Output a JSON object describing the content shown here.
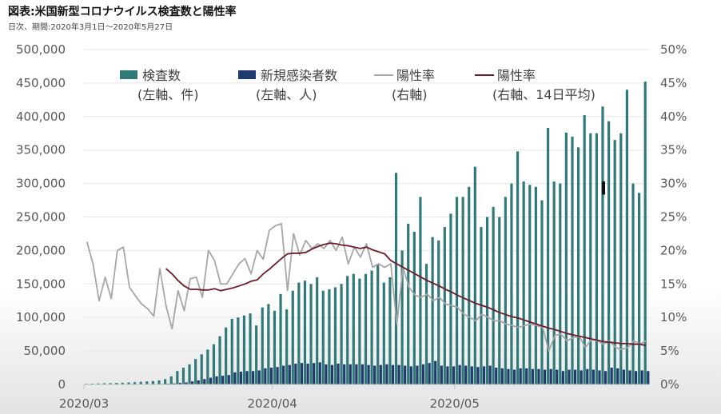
{
  "title": "図表:米国新型コロナウイルス検査数と陽性率",
  "subtitle": "日次、期間:2020年3月1日〜2020年5月27日",
  "colors": {
    "tests": "#2f7a79",
    "cases": "#1f3a6e",
    "positivity": "#a6a6a6",
    "positivity_avg": "#6b1c2a",
    "tick": "#595959"
  },
  "legend": [
    {
      "label": "検査数",
      "sub": "(左軸、件)",
      "swatch": "box",
      "color": "#2f7a79"
    },
    {
      "label": "新規感染者数",
      "sub": "(左軸、人)",
      "swatch": "box",
      "color": "#1f3a6e"
    },
    {
      "label": "陽性率",
      "sub": "(右軸)",
      "swatch": "line",
      "color": "#a6a6a6"
    },
    {
      "label": "陽性率",
      "sub": "(右軸、14日平均)",
      "swatch": "line",
      "color": "#6b1c2a"
    }
  ],
  "chart_data": {
    "type": "bar",
    "x_tick_labels": [
      "2020/03",
      "2020/04",
      "2020/05"
    ],
    "y_left": {
      "ylim": [
        0,
        500000
      ],
      "ticks": [
        "0",
        "50,000",
        "100,000",
        "150,000",
        "200,000",
        "250,000",
        "300,000",
        "350,000",
        "400,000",
        "450,000",
        "500,000"
      ]
    },
    "y_right": {
      "ylim": [
        0,
        50
      ],
      "ticks": [
        "0%",
        "5%",
        "10%",
        "15%",
        "20%",
        "25%",
        "30%",
        "35%",
        "40%",
        "45%",
        "50%"
      ]
    },
    "x_start": "2020-03-01",
    "x_end": "2020-05-27",
    "series": [
      {
        "name": "検査数",
        "axis": "left",
        "kind": "bar",
        "values": [
          1000,
          1200,
          1500,
          1800,
          2000,
          2300,
          2600,
          3000,
          3500,
          4000,
          4500,
          5000,
          6000,
          8000,
          12000,
          20000,
          25000,
          30000,
          38000,
          45000,
          52000,
          60000,
          72000,
          85000,
          98000,
          100000,
          103000,
          106000,
          88000,
          115000,
          120000,
          110000,
          135000,
          112000,
          140000,
          152000,
          155000,
          150000,
          160000,
          140000,
          142000,
          145000,
          150000,
          162000,
          165000,
          158000,
          165000,
          170000,
          180000,
          152000,
          160000,
          316000,
          200000,
          240000,
          228000,
          280000,
          180000,
          220000,
          215000,
          235000,
          255000,
          280000,
          280000,
          295000,
          325000,
          235000,
          250000,
          265000,
          250000,
          280000,
          300000,
          348000,
          303000,
          298000,
          295000,
          275000,
          383000,
          303000,
          300000,
          376000,
          370000,
          354000,
          402000,
          375000,
          375000,
          415000,
          393000,
          365000,
          375000,
          440000,
          300000,
          286000,
          452000
        ]
      },
      {
        "name": "新規感染者数",
        "axis": "left",
        "kind": "bar",
        "values": [
          10,
          15,
          20,
          25,
          30,
          50,
          80,
          100,
          200,
          300,
          400,
          500,
          700,
          1000,
          1500,
          2300,
          3000,
          4500,
          6000,
          8000,
          10000,
          12000,
          13000,
          14000,
          18000,
          19000,
          20000,
          20000,
          21000,
          24000,
          25000,
          26000,
          28000,
          29000,
          31000,
          32000,
          31000,
          32000,
          33000,
          30000,
          29000,
          31000,
          30000,
          30000,
          30000,
          30000,
          29000,
          28000,
          29000,
          30000,
          29000,
          29000,
          28000,
          27000,
          28000,
          30000,
          32000,
          35000,
          28000,
          27000,
          27000,
          29000,
          28000,
          27000,
          26000,
          27000,
          28000,
          25000,
          24000,
          23000,
          22000,
          24000,
          24000,
          23000,
          23000,
          22000,
          23000,
          22000,
          20000,
          22000,
          22000,
          21000,
          23000,
          22000,
          21000,
          20000,
          25000,
          24000,
          22000,
          21000,
          20000,
          21000,
          20000
        ]
      },
      {
        "name": "陽性率",
        "axis": "right",
        "kind": "line",
        "values": [
          21.3,
          18.0,
          12.5,
          16.0,
          12.8,
          20.0,
          20.5,
          14.5,
          13.2,
          12.0,
          11.3,
          10.2,
          17.3,
          11.8,
          8.3,
          14.0,
          11.0,
          15.8,
          16.0,
          13.0,
          20.0,
          18.5,
          15.0,
          15.0,
          16.5,
          18.0,
          18.8,
          16.5,
          20.0,
          18.7,
          23.0,
          23.7,
          24.0,
          14.0,
          22.5,
          19.3,
          21.5,
          20.3,
          21.0,
          20.3,
          21.5,
          20.0,
          22.0,
          18.0,
          20.5,
          19.0,
          21.0,
          17.5,
          18.0,
          17.5,
          18.0,
          9.0,
          17.5,
          14.5,
          13.3,
          13.0,
          13.5,
          12.5,
          13.0,
          12.0,
          11.8,
          11.5,
          10.5,
          10.0,
          9.5,
          10.5,
          10.0,
          9.5,
          9.5,
          9.0,
          8.8,
          8.5,
          8.8,
          9.0,
          8.8,
          8.5,
          5.0,
          7.3,
          7.5,
          6.5,
          7.0,
          7.2,
          5.5,
          6.7,
          6.5,
          6.0,
          6.5,
          5.5,
          5.2,
          5.5,
          6.5,
          6.0,
          6.5
        ]
      },
      {
        "name": "陽性率",
        "axis": "right",
        "kind": "line",
        "start_index": 13,
        "values": [
          17.3,
          16.5,
          15.5,
          14.7,
          14.2,
          14.2,
          14.1,
          14.1,
          14.3,
          14.0,
          14.2,
          14.4,
          14.7,
          15.0,
          15.4,
          15.6,
          16.5,
          17.2,
          18.0,
          18.8,
          19.5,
          19.6,
          19.6,
          19.7,
          20.2,
          20.6,
          20.9,
          21.1,
          21.0,
          20.8,
          20.7,
          20.5,
          20.3,
          20.5,
          20.1,
          19.8,
          19.5,
          18.5,
          18.0,
          17.5,
          17.0,
          16.5,
          16.0,
          15.5,
          15.1,
          14.7,
          14.2,
          13.8,
          13.3,
          12.9,
          12.5,
          12.1,
          11.8,
          11.5,
          11.1,
          10.7,
          10.4,
          10.1,
          9.9,
          9.6,
          9.3,
          9.0,
          8.7,
          8.4,
          8.2,
          7.9,
          7.6,
          7.4,
          7.2,
          7.0,
          6.8,
          6.6,
          6.4,
          6.3,
          6.2,
          6.1,
          6.1,
          6.0,
          6.0,
          5.8
        ]
      }
    ],
    "annotation": {
      "label": "I",
      "x_index": 85,
      "y_right": 29.3
    }
  }
}
